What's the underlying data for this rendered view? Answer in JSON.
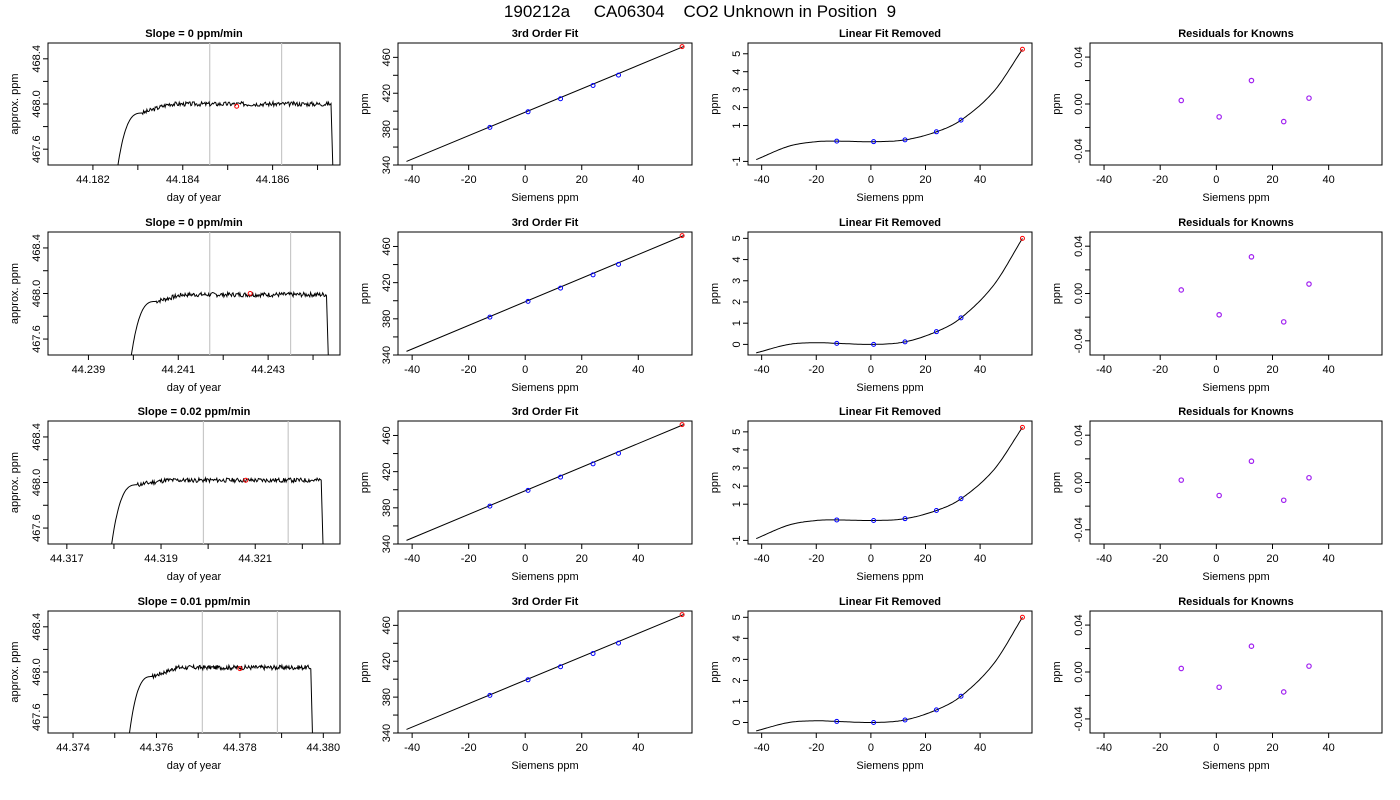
{
  "figure_title": "190212a     CA06304    CO2 Unknown in Position  9",
  "colors": {
    "trace": "#000000",
    "window_lines": "#c8c8c8",
    "unknown_point": "#ff0000",
    "known_point": "#0000ff",
    "residual_point": "#a020f0"
  },
  "chart_data": [
    {
      "type": "line",
      "title": "Slope =  0  ppm/min",
      "xlabel": "day of year",
      "ylabel": "approx. ppm",
      "xlim": [
        44.181,
        44.1875
      ],
      "ylim": [
        467.46,
        468.54
      ],
      "xticks": [
        44.182,
        44.184,
        44.186
      ],
      "xtick_labels": [
        "44.182",
        "44.184",
        "44.186"
      ],
      "xtick_minor": [
        44.183,
        44.185,
        44.187
      ],
      "yticks": [
        467.6,
        468.0,
        468.4
      ],
      "ytick_labels": [
        "467.6",
        "468.0",
        "468.4"
      ],
      "yminor": [
        467.8,
        468.2
      ],
      "trace": {
        "start": 44.1825,
        "end": 44.1873,
        "rise_end": 44.1831,
        "base": 467.3,
        "plateau": 468.0,
        "plateau_start": 467.92,
        "slope_per_day": 0.06,
        "noise": 0.02,
        "seed": 3
      },
      "window": [
        44.1846,
        44.1862
      ],
      "unknown_point": [
        44.1852,
        467.98
      ]
    },
    {
      "type": "line",
      "title": "Slope =  0  ppm/min",
      "xlabel": "day of year",
      "ylabel": "approx. ppm",
      "xlim": [
        44.2381,
        44.2446
      ],
      "ylim": [
        467.46,
        468.54
      ],
      "xticks": [
        44.239,
        44.241,
        44.243
      ],
      "xtick_labels": [
        "44.239",
        "44.241",
        "44.243"
      ],
      "xtick_minor": [
        44.24,
        44.242,
        44.244
      ],
      "yticks": [
        467.6,
        468.0,
        468.4
      ],
      "ytick_labels": [
        "467.6",
        "468.0",
        "468.4"
      ],
      "yminor": [
        467.8,
        468.2
      ],
      "trace": {
        "start": 44.2399,
        "end": 44.2443,
        "rise_end": 44.2405,
        "base": 467.3,
        "plateau": 467.99,
        "plateau_start": 467.93,
        "slope_per_day": 0.04,
        "noise": 0.02,
        "seed": 7
      },
      "window": [
        44.2417,
        44.2435
      ],
      "unknown_point": [
        44.2426,
        468.0
      ]
    },
    {
      "type": "line",
      "title": "Slope =  0.02  ppm/min",
      "xlabel": "day of year",
      "ylabel": "approx. ppm",
      "xlim": [
        44.3166,
        44.3228
      ],
      "ylim": [
        467.46,
        468.54
      ],
      "xticks": [
        44.317,
        44.319,
        44.321
      ],
      "xtick_labels": [
        "44.317",
        "44.319",
        "44.321"
      ],
      "xtick_minor": [
        44.318,
        44.32,
        44.322
      ],
      "yticks": [
        467.6,
        468.0,
        468.4
      ],
      "ytick_labels": [
        "467.6",
        "468.0",
        "468.4"
      ],
      "yminor": [
        467.8,
        468.2
      ],
      "trace": {
        "start": 44.3179,
        "end": 44.3224,
        "rise_end": 44.3185,
        "base": 467.3,
        "plateau": 468.02,
        "plateau_start": 467.98,
        "slope_per_day": 0.03,
        "noise": 0.02,
        "seed": 11
      },
      "window": [
        44.3199,
        44.3217
      ],
      "unknown_point": [
        44.3208,
        468.02
      ]
    },
    {
      "type": "line",
      "title": "Slope =  0.01  ppm/min",
      "xlabel": "day of year",
      "ylabel": "approx. ppm",
      "xlim": [
        44.3734,
        44.3804
      ],
      "ylim": [
        467.46,
        468.54
      ],
      "xticks": [
        44.374,
        44.376,
        44.378,
        44.38
      ],
      "xtick_labels": [
        "44.374",
        "44.376",
        "44.378",
        "44.380"
      ],
      "xtick_minor": [
        44.375,
        44.377,
        44.379
      ],
      "yticks": [
        467.6,
        468.0,
        468.4
      ],
      "ytick_labels": [
        "467.6",
        "468.0",
        "468.4"
      ],
      "yminor": [
        467.8,
        468.2
      ],
      "trace": {
        "start": 44.3753,
        "end": 44.3797,
        "rise_end": 44.3759,
        "base": 467.3,
        "plateau": 468.04,
        "plateau_start": 467.96,
        "slope_per_day": 0.03,
        "noise": 0.02,
        "seed": 17
      },
      "window": [
        44.3771,
        44.3789
      ],
      "unknown_point": [
        44.378,
        468.03
      ]
    },
    {
      "type": "line",
      "title": "3rd Order Fit",
      "xlabel": "Siemens ppm",
      "ylabel": "ppm",
      "xlim": [
        -45,
        59
      ],
      "ylim": [
        340,
        476
      ],
      "xticks": [
        -40,
        -20,
        0,
        20,
        40
      ],
      "xtick_labels": [
        "-40",
        "-20",
        "0",
        "20",
        "40"
      ],
      "yticks": [
        340,
        380,
        420,
        460
      ],
      "ytick_labels": [
        "340",
        "380",
        "420",
        "460"
      ],
      "yminor": [
        360,
        400,
        440
      ],
      "fit_line": {
        "x": [
          -42,
          56
        ],
        "y": [
          344,
          472
        ]
      },
      "known_points": {
        "x": [
          -12.5,
          1,
          12.5,
          24,
          33
        ],
        "y": [
          381.9,
          399.3,
          413.9,
          428.6,
          440.2
        ]
      },
      "unknown_point": [
        55.5,
        472
      ]
    },
    {
      "type": "line",
      "title": "3rd Order Fit",
      "xlabel": "Siemens ppm",
      "ylabel": "ppm",
      "xlim": [
        -45,
        59
      ],
      "ylim": [
        340,
        476
      ],
      "xticks": [
        -40,
        -20,
        0,
        20,
        40
      ],
      "xtick_labels": [
        "-40",
        "-20",
        "0",
        "20",
        "40"
      ],
      "yticks": [
        340,
        380,
        420,
        460
      ],
      "ytick_labels": [
        "340",
        "380",
        "420",
        "460"
      ],
      "yminor": [
        360,
        400,
        440
      ],
      "fit_line": {
        "x": [
          -42,
          56
        ],
        "y": [
          344,
          472
        ]
      },
      "known_points": {
        "x": [
          -12.5,
          1,
          12.5,
          24,
          33
        ],
        "y": [
          381.9,
          399.3,
          413.9,
          428.6,
          440.2
        ]
      },
      "unknown_point": [
        55.5,
        472
      ]
    },
    {
      "type": "line",
      "title": "3rd Order Fit",
      "xlabel": "Siemens ppm",
      "ylabel": "ppm",
      "xlim": [
        -45,
        59
      ],
      "ylim": [
        340,
        476
      ],
      "xticks": [
        -40,
        -20,
        0,
        20,
        40
      ],
      "xtick_labels": [
        "-40",
        "-20",
        "0",
        "20",
        "40"
      ],
      "yticks": [
        340,
        380,
        420,
        460
      ],
      "ytick_labels": [
        "340",
        "380",
        "420",
        "460"
      ],
      "yminor": [
        360,
        400,
        440
      ],
      "fit_line": {
        "x": [
          -42,
          56
        ],
        "y": [
          344,
          472
        ]
      },
      "known_points": {
        "x": [
          -12.5,
          1,
          12.5,
          24,
          33
        ],
        "y": [
          381.9,
          399.3,
          413.9,
          428.6,
          440.2
        ]
      },
      "unknown_point": [
        55.5,
        472
      ]
    },
    {
      "type": "line",
      "title": "3rd Order Fit",
      "xlabel": "Siemens ppm",
      "ylabel": "ppm",
      "xlim": [
        -45,
        59
      ],
      "ylim": [
        340,
        476
      ],
      "xticks": [
        -40,
        -20,
        0,
        20,
        40
      ],
      "xtick_labels": [
        "-40",
        "-20",
        "0",
        "20",
        "40"
      ],
      "yticks": [
        340,
        380,
        420,
        460
      ],
      "ytick_labels": [
        "340",
        "380",
        "420",
        "460"
      ],
      "yminor": [
        360,
        400,
        440
      ],
      "fit_line": {
        "x": [
          -42,
          56
        ],
        "y": [
          344,
          472
        ]
      },
      "known_points": {
        "x": [
          -12.5,
          1,
          12.5,
          24,
          33
        ],
        "y": [
          381.9,
          399.3,
          413.9,
          428.6,
          440.2
        ]
      },
      "unknown_point": [
        55.5,
        472
      ]
    },
    {
      "type": "line",
      "title": "Linear Fit Removed",
      "xlabel": "Siemens ppm",
      "ylabel": "ppm",
      "xlim": [
        -45,
        59
      ],
      "ylim": [
        -1.2,
        5.6
      ],
      "xticks": [
        -40,
        -20,
        0,
        20,
        40
      ],
      "xtick_labels": [
        "-40",
        "-20",
        "0",
        "20",
        "40"
      ],
      "yticks": [
        -1,
        1,
        2,
        3,
        4,
        5
      ],
      "ytick_labels": [
        "-1",
        "1",
        "2",
        "3",
        "4",
        "5"
      ],
      "curve": {
        "x": [
          -42,
          -30,
          -20,
          -12.5,
          1,
          12.5,
          24,
          33,
          45,
          55.5
        ],
        "y": [
          -0.9,
          -0.15,
          0.1,
          0.13,
          0.1,
          0.2,
          0.65,
          1.3,
          2.9,
          5.25
        ]
      },
      "known_points": {
        "x": [
          -12.5,
          1,
          12.5,
          24,
          33
        ],
        "y": [
          0.13,
          0.1,
          0.2,
          0.65,
          1.3
        ]
      },
      "unknown_point": [
        55.5,
        5.25
      ]
    },
    {
      "type": "line",
      "title": "Linear Fit Removed",
      "xlabel": "Siemens ppm",
      "ylabel": "ppm",
      "xlim": [
        -45,
        59
      ],
      "ylim": [
        -0.5,
        5.3
      ],
      "xticks": [
        -40,
        -20,
        0,
        20,
        40
      ],
      "xtick_labels": [
        "-40",
        "-20",
        "0",
        "20",
        "40"
      ],
      "yticks": [
        0,
        1,
        2,
        3,
        4,
        5
      ],
      "ytick_labels": [
        "0",
        "1",
        "2",
        "3",
        "4",
        "5"
      ],
      "curve": {
        "x": [
          -42,
          -30,
          -20,
          -12.5,
          1,
          12.5,
          24,
          33,
          45,
          55.5
        ],
        "y": [
          -0.4,
          0.0,
          0.08,
          0.05,
          0.0,
          0.12,
          0.6,
          1.25,
          2.8,
          5.0
        ]
      },
      "known_points": {
        "x": [
          -12.5,
          1,
          12.5,
          24,
          33
        ],
        "y": [
          0.05,
          0.0,
          0.12,
          0.6,
          1.25
        ]
      },
      "unknown_point": [
        55.5,
        5.0
      ]
    },
    {
      "type": "line",
      "title": "Linear Fit Removed",
      "xlabel": "Siemens ppm",
      "ylabel": "ppm",
      "xlim": [
        -45,
        59
      ],
      "ylim": [
        -1.2,
        5.6
      ],
      "xticks": [
        -40,
        -20,
        0,
        20,
        40
      ],
      "xtick_labels": [
        "-40",
        "-20",
        "0",
        "20",
        "40"
      ],
      "yticks": [
        -1,
        1,
        2,
        3,
        4,
        5
      ],
      "ytick_labels": [
        "-1",
        "1",
        "2",
        "3",
        "4",
        "5"
      ],
      "curve": {
        "x": [
          -42,
          -30,
          -20,
          -12.5,
          1,
          12.5,
          24,
          33,
          45,
          55.5
        ],
        "y": [
          -0.9,
          -0.15,
          0.1,
          0.13,
          0.1,
          0.2,
          0.65,
          1.3,
          2.9,
          5.25
        ]
      },
      "known_points": {
        "x": [
          -12.5,
          1,
          12.5,
          24,
          33
        ],
        "y": [
          0.13,
          0.1,
          0.2,
          0.65,
          1.3
        ]
      },
      "unknown_point": [
        55.5,
        5.25
      ]
    },
    {
      "type": "line",
      "title": "Linear Fit Removed",
      "xlabel": "Siemens ppm",
      "ylabel": "ppm",
      "xlim": [
        -45,
        59
      ],
      "ylim": [
        -0.5,
        5.3
      ],
      "xticks": [
        -40,
        -20,
        0,
        20,
        40
      ],
      "xtick_labels": [
        "-40",
        "-20",
        "0",
        "20",
        "40"
      ],
      "yticks": [
        0,
        1,
        2,
        3,
        4,
        5
      ],
      "ytick_labels": [
        "0",
        "1",
        "2",
        "3",
        "4",
        "5"
      ],
      "curve": {
        "x": [
          -42,
          -30,
          -20,
          -12.5,
          1,
          12.5,
          24,
          33,
          45,
          55.5
        ],
        "y": [
          -0.4,
          0.0,
          0.08,
          0.05,
          0.0,
          0.12,
          0.6,
          1.25,
          2.8,
          5.0
        ]
      },
      "known_points": {
        "x": [
          -12.5,
          1,
          12.5,
          24,
          33
        ],
        "y": [
          0.05,
          0.0,
          0.12,
          0.6,
          1.25
        ]
      },
      "unknown_point": [
        55.5,
        5.0
      ]
    },
    {
      "type": "scatter",
      "title": "Residuals for Knowns",
      "xlabel": "Siemens ppm",
      "ylabel": "ppm",
      "xlim": [
        -45,
        59
      ],
      "ylim": [
        -0.052,
        0.052
      ],
      "xticks": [
        -40,
        -20,
        0,
        20,
        40
      ],
      "xtick_labels": [
        "-40",
        "-20",
        "0",
        "20",
        "40"
      ],
      "yticks": [
        -0.04,
        0.0,
        0.04
      ],
      "ytick_labels": [
        "-0.04",
        "0.00",
        "0.04"
      ],
      "yminor": [
        -0.02,
        0.02
      ],
      "points": {
        "x": [
          -12.5,
          1,
          12.5,
          24,
          33
        ],
        "y": [
          0.003,
          -0.011,
          0.02,
          -0.015,
          0.005
        ]
      }
    },
    {
      "type": "scatter",
      "title": "Residuals for Knowns",
      "xlabel": "Siemens ppm",
      "ylabel": "ppm",
      "xlim": [
        -45,
        59
      ],
      "ylim": [
        -0.052,
        0.052
      ],
      "xticks": [
        -40,
        -20,
        0,
        20,
        40
      ],
      "xtick_labels": [
        "-40",
        "-20",
        "0",
        "20",
        "40"
      ],
      "yticks": [
        -0.04,
        0.0,
        0.04
      ],
      "ytick_labels": [
        "-0.04",
        "0.00",
        "0.04"
      ],
      "yminor": [
        -0.02,
        0.02
      ],
      "points": {
        "x": [
          -12.5,
          1,
          12.5,
          24,
          33
        ],
        "y": [
          0.003,
          -0.018,
          0.031,
          -0.024,
          0.008
        ]
      }
    },
    {
      "type": "scatter",
      "title": "Residuals for Knowns",
      "xlabel": "Siemens ppm",
      "ylabel": "ppm",
      "xlim": [
        -45,
        59
      ],
      "ylim": [
        -0.052,
        0.052
      ],
      "xticks": [
        -40,
        -20,
        0,
        20,
        40
      ],
      "xtick_labels": [
        "-40",
        "-20",
        "0",
        "20",
        "40"
      ],
      "yticks": [
        -0.04,
        0.0,
        0.04
      ],
      "ytick_labels": [
        "-0.04",
        "0.00",
        "0.04"
      ],
      "yminor": [
        -0.02,
        0.02
      ],
      "points": {
        "x": [
          -12.5,
          1,
          12.5,
          24,
          33
        ],
        "y": [
          0.002,
          -0.011,
          0.018,
          -0.015,
          0.004
        ]
      }
    },
    {
      "type": "scatter",
      "title": "Residuals for Knowns",
      "xlabel": "Siemens ppm",
      "ylabel": "ppm",
      "xlim": [
        -45,
        59
      ],
      "ylim": [
        -0.052,
        0.052
      ],
      "xticks": [
        -40,
        -20,
        0,
        20,
        40
      ],
      "xtick_labels": [
        "-40",
        "-20",
        "0",
        "20",
        "40"
      ],
      "yticks": [
        -0.04,
        0.0,
        0.04
      ],
      "ytick_labels": [
        "-0.04",
        "0.00",
        "0.04"
      ],
      "yminor": [
        -0.02,
        0.02
      ],
      "points": {
        "x": [
          -12.5,
          1,
          12.5,
          24,
          33
        ],
        "y": [
          0.003,
          -0.013,
          0.022,
          -0.017,
          0.005
        ]
      }
    }
  ]
}
